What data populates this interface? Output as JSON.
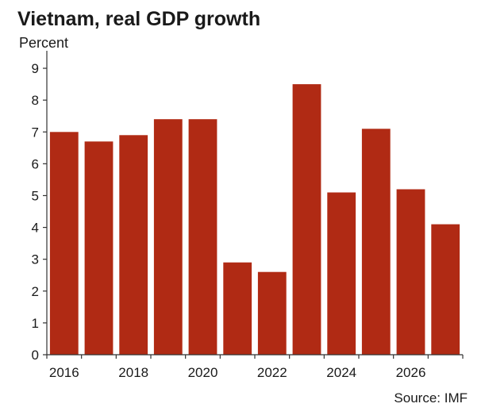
{
  "chart_data": {
    "type": "bar",
    "title": "Vietnam, real GDP growth",
    "ylabel": "Percent",
    "xlabel": "",
    "source": "Source: IMF",
    "categories": [
      "2016",
      "2017",
      "2018",
      "2019",
      "2020",
      "2021",
      "2022",
      "2023",
      "2024",
      "2025",
      "2026",
      "2027"
    ],
    "values": [
      7.0,
      6.7,
      6.9,
      7.4,
      7.4,
      2.9,
      2.6,
      8.5,
      5.1,
      7.1,
      5.2,
      4.1
    ],
    "x_tick_labels": [
      "2016",
      "2018",
      "2020",
      "2022",
      "2024",
      "2026"
    ],
    "y_ticks": [
      0,
      1,
      2,
      3,
      4,
      5,
      6,
      7,
      8,
      9
    ],
    "ylim": [
      0,
      9.5
    ],
    "bar_color": "#b02a14",
    "grid": false,
    "legend": "none"
  }
}
